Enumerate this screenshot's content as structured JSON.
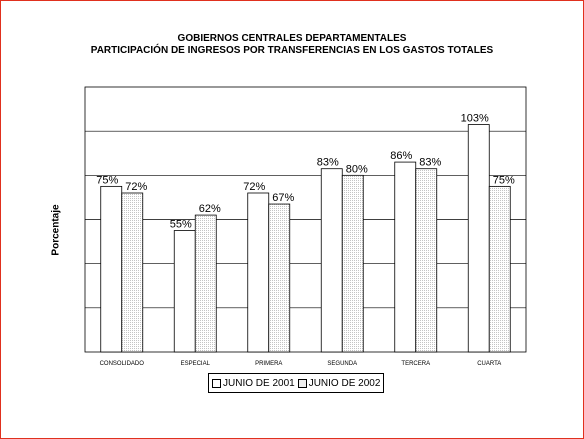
{
  "chart_data": {
    "type": "bar",
    "title": "GOBIERNOS CENTRALES DEPARTAMENTALES",
    "subtitle": "PARTICIPACIÓN DE INGRESOS POR TRANSFERENCIAS EN LOS GASTOS TOTALES",
    "ylabel": "Porcentaje",
    "xlabel": "",
    "categories": [
      "CONSOLIDADO",
      "ESPECIAL",
      "PRIMERA",
      "SEGUNDA",
      "TERCERA",
      "CUARTA"
    ],
    "series": [
      {
        "name": "JUNIO DE 2001",
        "values": [
          75,
          55,
          72,
          83,
          86,
          103
        ],
        "labels": [
          "75%",
          "55%",
          "72%",
          "83%",
          "86%",
          "103%"
        ]
      },
      {
        "name": "JUNIO DE 2002",
        "values": [
          72,
          62,
          67,
          80,
          83,
          75
        ],
        "labels": [
          "72%",
          "62%",
          "67%",
          "80%",
          "83%",
          "75%"
        ]
      }
    ],
    "ylim": [
      0,
      120
    ],
    "grid": true,
    "legend_position": "bottom",
    "colors": {
      "frame_border": "#e0301e",
      "series_2001_fill": "#ffffff",
      "series_2002_fill": "#e8e8e8",
      "bar_stroke": "#000000"
    }
  }
}
